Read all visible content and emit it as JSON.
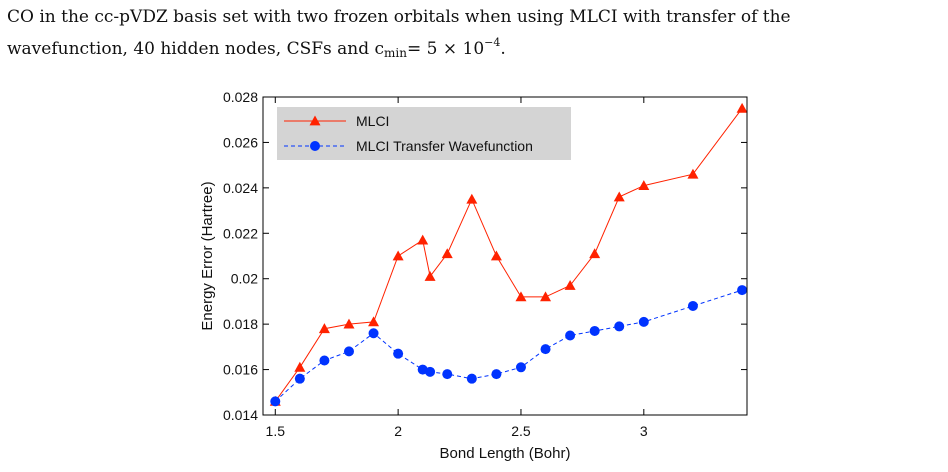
{
  "caption": {
    "line1": "CO in the cc-pVDZ basis set with two frozen orbitals when using MLCI with transfer of the",
    "line2_pre": "wavefunction, 40 hidden nodes, CSFs and c",
    "line2_sub": "min",
    "line2_mid": "= 5 × 10",
    "line2_sup": "−4",
    "line2_post": "."
  },
  "chart_data": {
    "type": "line",
    "xlabel": "Bond Length (Bohr)",
    "ylabel": "Energy Error (Hartree)",
    "xlim": [
      1.45,
      3.42
    ],
    "ylim": [
      0.014,
      0.028
    ],
    "xticks": [
      1.5,
      2,
      2.5,
      3
    ],
    "xtick_labels": [
      "1.5",
      "2",
      "2.5",
      "3"
    ],
    "yticks": [
      0.014,
      0.016,
      0.018,
      0.02,
      0.022,
      0.024,
      0.026,
      0.028
    ],
    "ytick_labels": [
      "0.014",
      "0.016",
      "0.018",
      "0.02",
      "0.022",
      "0.024",
      "0.026",
      "0.028"
    ],
    "grid": false,
    "legend_position": "top-left",
    "series": [
      {
        "name": "MLCI",
        "color": "#ff2200",
        "marker": "triangle",
        "line_style": "solid",
        "x": [
          1.5,
          1.6,
          1.7,
          1.8,
          1.9,
          2.0,
          2.1,
          2.13,
          2.2,
          2.3,
          2.4,
          2.5,
          2.6,
          2.7,
          2.8,
          2.9,
          3.0,
          3.2,
          3.4
        ],
        "y": [
          0.0146,
          0.0161,
          0.0178,
          0.018,
          0.0181,
          0.021,
          0.0217,
          0.0201,
          0.0211,
          0.0235,
          0.021,
          0.0192,
          0.0192,
          0.0197,
          0.0211,
          0.0236,
          0.0241,
          0.0246,
          0.0275
        ]
      },
      {
        "name": "MLCI Transfer Wavefunction",
        "color": "#0033ff",
        "marker": "circle",
        "line_style": "dashed",
        "x": [
          1.5,
          1.6,
          1.7,
          1.8,
          1.9,
          2.0,
          2.1,
          2.13,
          2.2,
          2.3,
          2.4,
          2.5,
          2.6,
          2.7,
          2.8,
          2.9,
          3.0,
          3.2,
          3.4
        ],
        "y": [
          0.0146,
          0.0156,
          0.0164,
          0.0168,
          0.0176,
          0.0167,
          0.016,
          0.0159,
          0.0158,
          0.0156,
          0.0158,
          0.0161,
          0.0169,
          0.0175,
          0.0177,
          0.0179,
          0.0181,
          0.0188,
          0.0195
        ]
      }
    ]
  }
}
